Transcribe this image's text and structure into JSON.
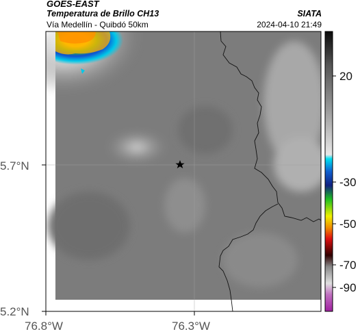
{
  "header": {
    "title_main": "GOES-EAST",
    "title_product": "Temperatura de Brillo CH13",
    "subtitle": "Vía Medellín - Quibdó 50km",
    "org": "SIATA",
    "datetime": "2024-04-10 21:49"
  },
  "map": {
    "lat_ticks": [
      {
        "value": 5.7,
        "label": "5.7°N"
      },
      {
        "value": 5.2,
        "label": "5.2°N"
      }
    ],
    "lon_ticks": [
      {
        "value": -76.8,
        "label": "76.8°W"
      },
      {
        "value": -76.3,
        "label": "76.3°W"
      }
    ],
    "marker": {
      "name": "Vía Medellín - Quibdó",
      "symbol": "star"
    },
    "gridlines": true
  },
  "colorbar": {
    "ticks": [
      {
        "value": 20,
        "label": "20"
      },
      {
        "value": -30,
        "label": "-30"
      },
      {
        "value": -50,
        "label": "-50"
      },
      {
        "value": -70,
        "label": "-70"
      },
      {
        "value": -90,
        "label": "-90"
      }
    ],
    "colors": {
      "warm_gray_top": "#111111",
      "cyan": "#00bcd4",
      "blue": "#1030c0",
      "green": "#20b020",
      "yellow": "#f0f000",
      "orange": "#f08000",
      "red": "#e01010",
      "dark_red": "#500000",
      "magenta": "#a020a0"
    }
  }
}
